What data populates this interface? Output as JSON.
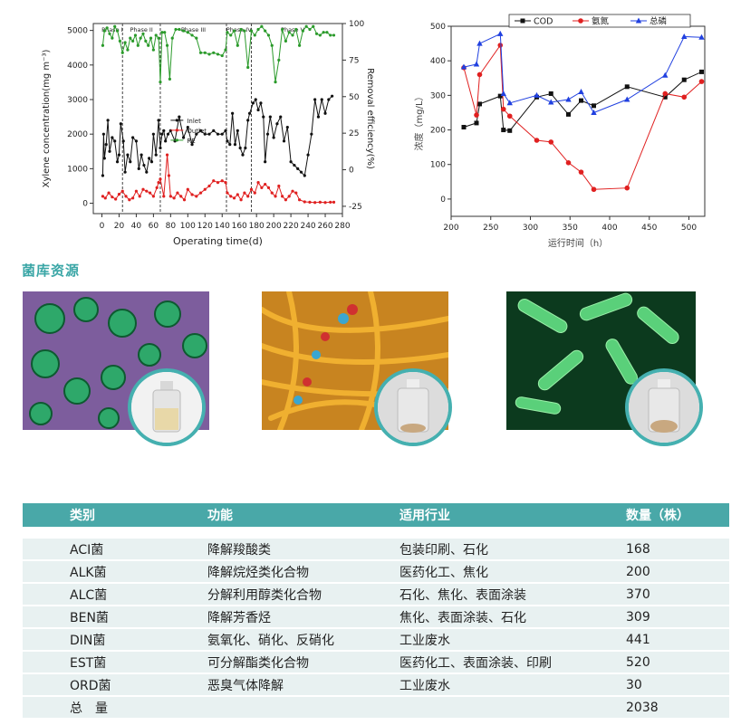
{
  "chart_data": [
    {
      "type": "line",
      "xlabel": "Operating time(d)",
      "ylabel": "Xylene concentration(mg m⁻³)",
      "y2label": "Removal efficiency(%)",
      "xlim": [
        -10,
        280
      ],
      "ylim": [
        -300,
        5200
      ],
      "y2lim": [
        -30,
        100
      ],
      "x_ticks": [
        0,
        20,
        40,
        60,
        80,
        100,
        120,
        140,
        160,
        180,
        200,
        220,
        240,
        260,
        280
      ],
      "y_ticks": [
        0,
        1000,
        2000,
        3000,
        4000,
        5000
      ],
      "y2_ticks": [
        -25,
        0,
        25,
        50,
        75,
        100
      ],
      "phases": [
        {
          "label": "Phase I",
          "start": 0,
          "end": 24
        },
        {
          "label": "Phase II",
          "start": 24,
          "end": 68
        },
        {
          "label": "Phase III",
          "start": 68,
          "end": 145
        },
        {
          "label": "Phase IV",
          "start": 145,
          "end": 174
        },
        {
          "label": "Phase V",
          "start": 174,
          "end": 270
        }
      ],
      "legend_position": "center",
      "series": [
        {
          "name": "Inlet",
          "color": "#111111",
          "axis": "left",
          "x": [
            1,
            2,
            3,
            5,
            7,
            9,
            12,
            15,
            18,
            20,
            22,
            25,
            27,
            30,
            33,
            36,
            40,
            43,
            46,
            49,
            52,
            55,
            58,
            60,
            63,
            66,
            68,
            70,
            72,
            74,
            77,
            80,
            85,
            90,
            95,
            100,
            105,
            110,
            115,
            120,
            125,
            130,
            135,
            140,
            144,
            146,
            149,
            152,
            155,
            158,
            161,
            164,
            167,
            170,
            172,
            176,
            179,
            182,
            185,
            188,
            190,
            193,
            196,
            200,
            204,
            208,
            212,
            216,
            220,
            224,
            228,
            232,
            236,
            240,
            244,
            248,
            252,
            256,
            260,
            264,
            268
          ],
          "y": [
            800,
            2000,
            1300,
            1700,
            2400,
            1500,
            1900,
            1800,
            1200,
            1400,
            2300,
            1800,
            900,
            1400,
            1200,
            1900,
            1800,
            1000,
            1400,
            1100,
            900,
            1300,
            1200,
            2000,
            1400,
            2400,
            1600,
            2000,
            2100,
            1800,
            2000,
            2100,
            1800,
            2500,
            1900,
            2200,
            1700,
            2000,
            2100,
            2000,
            2000,
            2100,
            2000,
            2000,
            2100,
            1800,
            1700,
            2600,
            1700,
            2100,
            1600,
            1400,
            1600,
            2400,
            2600,
            2900,
            3000,
            2700,
            2900,
            2500,
            1200,
            2000,
            2500,
            1900,
            2300,
            2500,
            1800,
            2200,
            1200,
            1100,
            1000,
            900,
            800,
            1400,
            2000,
            3000,
            2500,
            3000,
            2600,
            3000,
            3100
          ]
        },
        {
          "name": "Outlet",
          "color": "#e02020",
          "axis": "left",
          "x": [
            1,
            4,
            8,
            12,
            16,
            20,
            24,
            28,
            32,
            36,
            40,
            44,
            48,
            52,
            56,
            60,
            64,
            66,
            68,
            72,
            76,
            78,
            80,
            84,
            88,
            92,
            96,
            100,
            105,
            110,
            115,
            120,
            125,
            130,
            135,
            140,
            144,
            146,
            150,
            154,
            158,
            162,
            166,
            170,
            174,
            178,
            182,
            186,
            190,
            194,
            198,
            202,
            206,
            210,
            214,
            218,
            222,
            226,
            230,
            236,
            242,
            248,
            254,
            260,
            266,
            270
          ],
          "y": [
            200,
            150,
            300,
            180,
            120,
            260,
            350,
            200,
            100,
            150,
            350,
            200,
            400,
            350,
            300,
            200,
            450,
            600,
            700,
            200,
            1400,
            800,
            200,
            150,
            300,
            200,
            100,
            400,
            250,
            200,
            300,
            400,
            500,
            650,
            600,
            650,
            600,
            300,
            200,
            150,
            250,
            100,
            300,
            200,
            400,
            300,
            600,
            450,
            550,
            450,
            300,
            200,
            500,
            200,
            100,
            200,
            350,
            300,
            100,
            40,
            30,
            20,
            30,
            20,
            30,
            30
          ]
        },
        {
          "name": "RE",
          "color": "#2a9a2a",
          "axis": "right",
          "x": [
            1,
            3,
            6,
            9,
            12,
            15,
            18,
            21,
            24,
            27,
            30,
            33,
            36,
            39,
            42,
            45,
            48,
            51,
            54,
            57,
            60,
            63,
            66,
            68,
            70,
            73,
            76,
            79,
            82,
            86,
            90,
            95,
            100,
            105,
            110,
            115,
            120,
            125,
            130,
            135,
            140,
            144,
            146,
            150,
            154,
            158,
            162,
            166,
            170,
            174,
            178,
            182,
            186,
            190,
            194,
            198,
            202,
            206,
            210,
            214,
            218,
            222,
            226,
            230,
            234,
            238,
            242,
            246,
            250,
            254,
            258,
            262,
            266,
            270
          ],
          "y": [
            85,
            95,
            97,
            93,
            90,
            98,
            95,
            88,
            80,
            87,
            82,
            90,
            88,
            92,
            85,
            90,
            93,
            88,
            85,
            90,
            82,
            92,
            90,
            60,
            94,
            94,
            85,
            62,
            90,
            96,
            96,
            95,
            94,
            92,
            90,
            80,
            80,
            79,
            80,
            79,
            78,
            82,
            94,
            92,
            95,
            85,
            96,
            95,
            70,
            95,
            92,
            96,
            98,
            95,
            92,
            85,
            60,
            75,
            96,
            88,
            94,
            92,
            96,
            85,
            95,
            98,
            96,
            98,
            93,
            92,
            94,
            94,
            92,
            92
          ]
        }
      ]
    },
    {
      "type": "line",
      "xlabel": "运行时间（h）",
      "ylabel": "浓度（mg/L）",
      "xlim": [
        200,
        520
      ],
      "ylim": [
        -50,
        500
      ],
      "x_ticks": [
        200,
        250,
        300,
        350,
        400,
        450,
        500
      ],
      "y_ticks": [
        0,
        100,
        200,
        300,
        400,
        500
      ],
      "legend_position": "top",
      "series": [
        {
          "name": "COD",
          "color": "#111111",
          "marker": "square",
          "x": [
            216,
            232,
            236,
            262,
            266,
            274,
            308,
            326,
            348,
            364,
            380,
            422,
            470,
            494,
            516
          ],
          "y": [
            208,
            220,
            275,
            298,
            200,
            198,
            295,
            305,
            245,
            285,
            270,
            325,
            295,
            345,
            368
          ]
        },
        {
          "name": "氨氮",
          "color": "#e02020",
          "marker": "circle",
          "x": [
            216,
            232,
            236,
            262,
            266,
            274,
            308,
            326,
            348,
            364,
            380,
            422,
            470,
            494,
            516
          ],
          "y": [
            380,
            243,
            360,
            445,
            260,
            240,
            170,
            165,
            105,
            78,
            28,
            32,
            305,
            295,
            340
          ]
        },
        {
          "name": "总磷",
          "color": "#2040e0",
          "marker": "triangle",
          "x": [
            216,
            232,
            236,
            262,
            266,
            274,
            308,
            326,
            348,
            364,
            380,
            422,
            470,
            494,
            516
          ],
          "y": [
            382,
            390,
            450,
            478,
            305,
            278,
            300,
            280,
            288,
            310,
            250,
            288,
            358,
            470,
            468
          ]
        }
      ]
    }
  ],
  "section": {
    "title": "菌库资源"
  },
  "table": {
    "headers": [
      "类别",
      "功能",
      "适用行业",
      "数量（株）"
    ],
    "rows": [
      [
        "ACI菌",
        "降解羧酸类",
        "包装印刷、石化",
        "168"
      ],
      [
        "ALK菌",
        "降解烷烃类化合物",
        "医药化工、焦化",
        "200"
      ],
      [
        "ALC菌",
        "分解利用醇类化合物",
        "石化、焦化、表面涂装",
        "370"
      ],
      [
        "BEN菌",
        "降解芳香烃",
        "焦化、表面涂装、石化",
        "309"
      ],
      [
        "DIN菌",
        "氨氧化、硝化、反硝化",
        "工业废水",
        "441"
      ],
      [
        "EST菌",
        "可分解酯类化合物",
        "医药化工、表面涂装、印刷",
        "520"
      ],
      [
        "ORD菌",
        "恶臭气体降解",
        "工业废水",
        "30"
      ]
    ],
    "total": {
      "label": "总　量",
      "value": "2038"
    }
  },
  "colors": {
    "accent": "#49a8a8",
    "row_bg": "#e8f1f1",
    "title": "#3aa6a6"
  }
}
